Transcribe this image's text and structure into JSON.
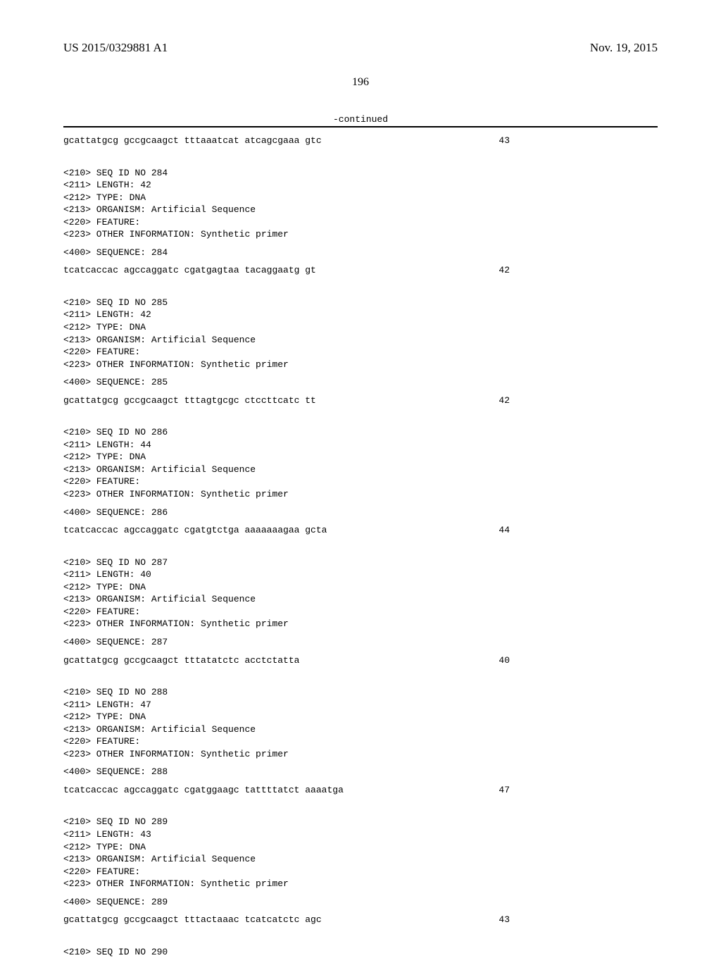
{
  "header": {
    "pub_number": "US 2015/0329881 A1",
    "date": "Nov. 19, 2015"
  },
  "page_number": "196",
  "continued": "-continued",
  "entries": [
    {
      "seq_line": "gcattatgcg gccgcaagct tttaaatcat atcagcgaaa gtc",
      "seq_len": "43",
      "meta": null
    },
    {
      "seq_line": "tcatcaccac agccaggatc cgatgagtaa tacaggaatg gt",
      "seq_len": "42",
      "meta": {
        "id": "<210> SEQ ID NO 284",
        "length": "<211> LENGTH: 42",
        "type": "<212> TYPE: DNA",
        "organism": "<213> ORGANISM: Artificial Sequence",
        "feature": "<220> FEATURE:",
        "other": "<223> OTHER INFORMATION: Synthetic primer",
        "sequence": "<400> SEQUENCE: 284"
      }
    },
    {
      "seq_line": "gcattatgcg gccgcaagct tttagtgcgc ctccttcatc tt",
      "seq_len": "42",
      "meta": {
        "id": "<210> SEQ ID NO 285",
        "length": "<211> LENGTH: 42",
        "type": "<212> TYPE: DNA",
        "organism": "<213> ORGANISM: Artificial Sequence",
        "feature": "<220> FEATURE:",
        "other": "<223> OTHER INFORMATION: Synthetic primer",
        "sequence": "<400> SEQUENCE: 285"
      }
    },
    {
      "seq_line": "tcatcaccac agccaggatc cgatgtctga aaaaaaagaa gcta",
      "seq_len": "44",
      "meta": {
        "id": "<210> SEQ ID NO 286",
        "length": "<211> LENGTH: 44",
        "type": "<212> TYPE: DNA",
        "organism": "<213> ORGANISM: Artificial Sequence",
        "feature": "<220> FEATURE:",
        "other": "<223> OTHER INFORMATION: Synthetic primer",
        "sequence": "<400> SEQUENCE: 286"
      }
    },
    {
      "seq_line": "gcattatgcg gccgcaagct tttatatctc acctctatta",
      "seq_len": "40",
      "meta": {
        "id": "<210> SEQ ID NO 287",
        "length": "<211> LENGTH: 40",
        "type": "<212> TYPE: DNA",
        "organism": "<213> ORGANISM: Artificial Sequence",
        "feature": "<220> FEATURE:",
        "other": "<223> OTHER INFORMATION: Synthetic primer",
        "sequence": "<400> SEQUENCE: 287"
      }
    },
    {
      "seq_line": "tcatcaccac agccaggatc cgatggaagc tattttatct aaaatga",
      "seq_len": "47",
      "meta": {
        "id": "<210> SEQ ID NO 288",
        "length": "<211> LENGTH: 47",
        "type": "<212> TYPE: DNA",
        "organism": "<213> ORGANISM: Artificial Sequence",
        "feature": "<220> FEATURE:",
        "other": "<223> OTHER INFORMATION: Synthetic primer",
        "sequence": "<400> SEQUENCE: 288"
      }
    },
    {
      "seq_line": "gcattatgcg gccgcaagct tttactaaac tcatcatctc agc",
      "seq_len": "43",
      "meta": {
        "id": "<210> SEQ ID NO 289",
        "length": "<211> LENGTH: 43",
        "type": "<212> TYPE: DNA",
        "organism": "<213> ORGANISM: Artificial Sequence",
        "feature": "<220> FEATURE:",
        "other": "<223> OTHER INFORMATION: Synthetic primer",
        "sequence": "<400> SEQUENCE: 289"
      }
    }
  ],
  "trailing": "<210> SEQ ID NO 290"
}
